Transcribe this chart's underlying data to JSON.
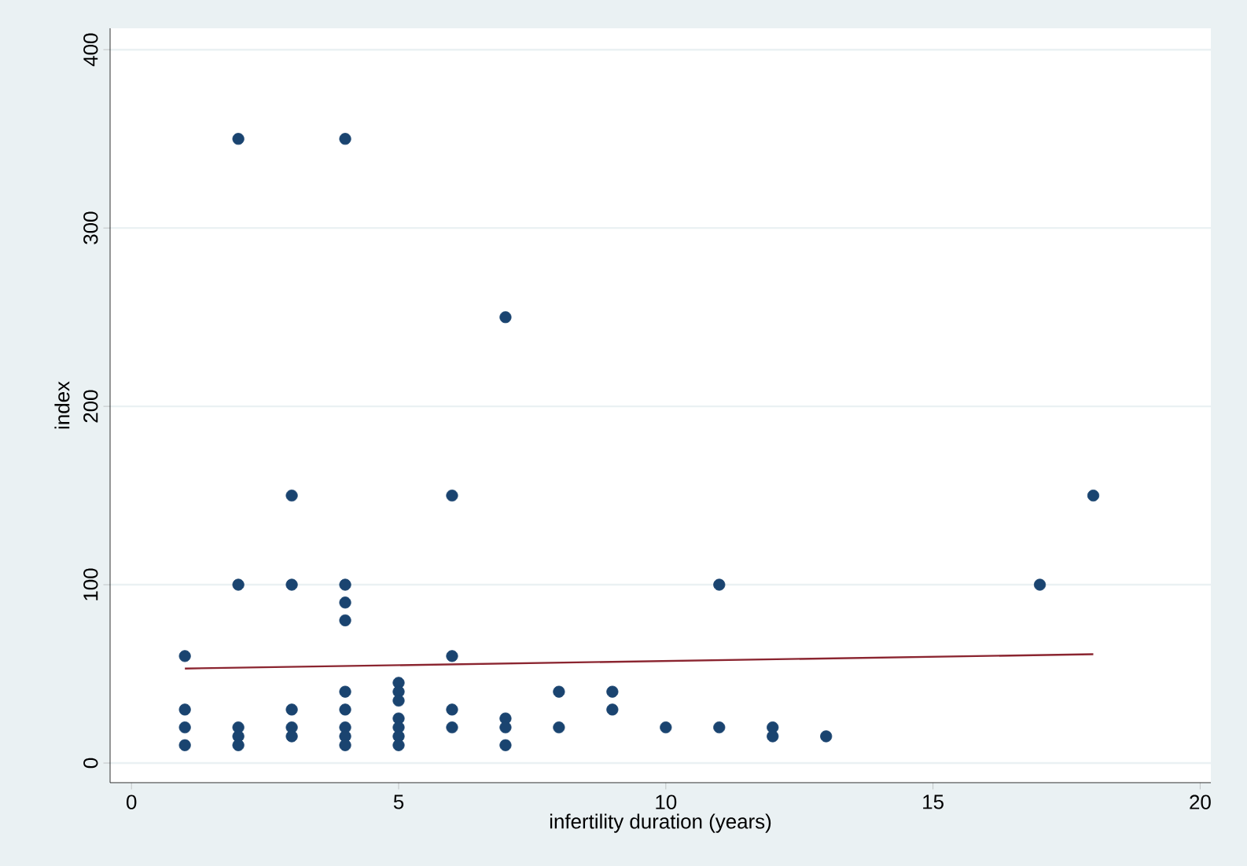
{
  "chart_data": {
    "type": "scatter",
    "xlabel": "infertility duration (years)",
    "ylabel": "index",
    "xlim": [
      -0.4,
      20.2
    ],
    "ylim": [
      -11,
      412
    ],
    "xticks": [
      0,
      5,
      10,
      15,
      20
    ],
    "yticks": [
      0,
      100,
      200,
      300,
      400
    ],
    "grid": "y",
    "series": [
      {
        "marker": "circle",
        "color": "#1a4470",
        "x": [
          1,
          1,
          1,
          1,
          2,
          2,
          2,
          2,
          2,
          3,
          3,
          3,
          3,
          3,
          4,
          4,
          4,
          4,
          4,
          4,
          4,
          4,
          4,
          5,
          5,
          5,
          5,
          5,
          5,
          5,
          6,
          6,
          6,
          6,
          7,
          7,
          7,
          7,
          8,
          8,
          9,
          9,
          10,
          11,
          11,
          12,
          12,
          13,
          17,
          18
        ],
        "values": [
          60,
          30,
          20,
          10,
          350,
          100,
          20,
          15,
          10,
          150,
          100,
          30,
          20,
          15,
          350,
          100,
          90,
          80,
          40,
          30,
          20,
          15,
          10,
          45,
          40,
          35,
          25,
          20,
          15,
          10,
          150,
          60,
          30,
          20,
          250,
          25,
          20,
          10,
          40,
          20,
          40,
          30,
          20,
          100,
          20,
          20,
          15,
          15,
          100,
          150
        ]
      },
      {
        "type": "line",
        "color": "#8b2530",
        "x": [
          1,
          18
        ],
        "values": [
          53,
          61
        ]
      }
    ]
  }
}
